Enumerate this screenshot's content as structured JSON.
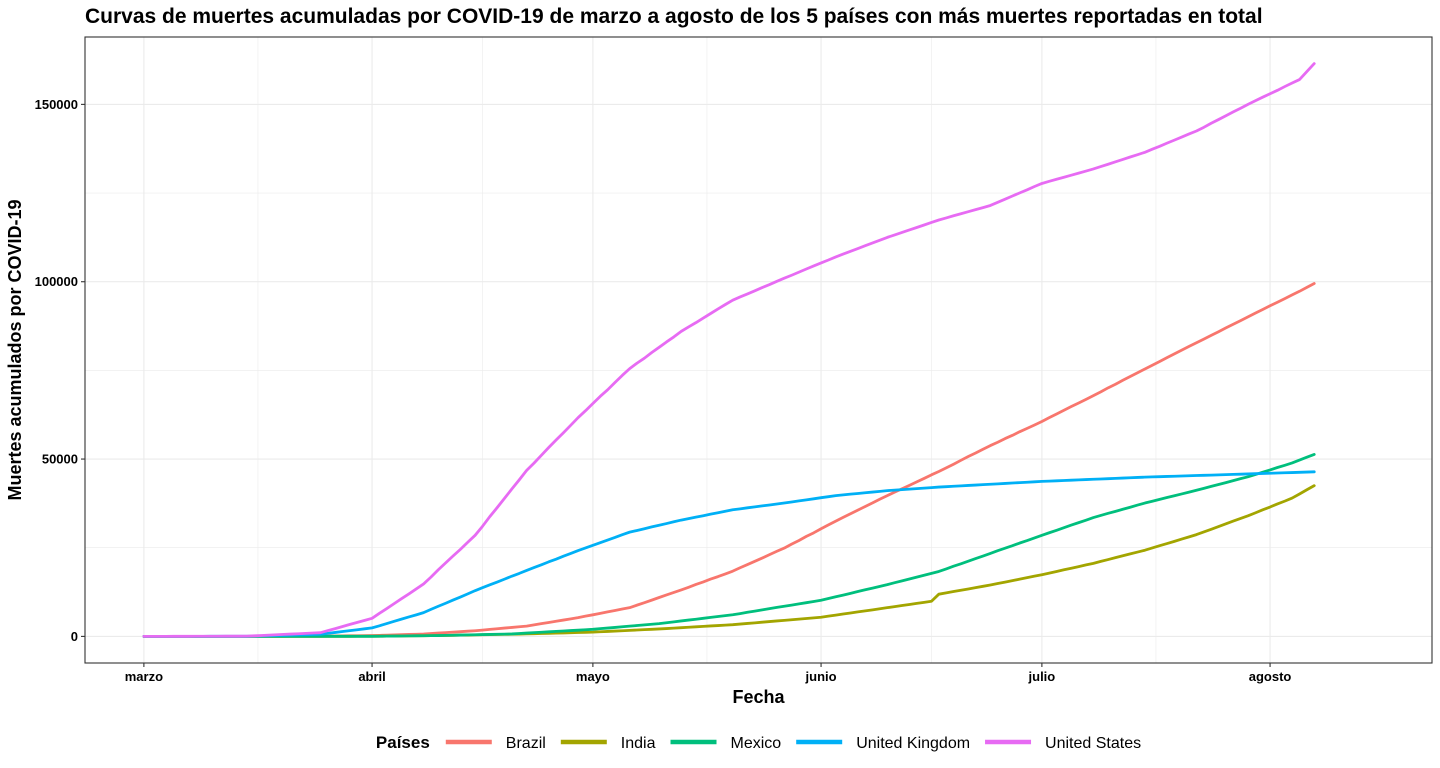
{
  "chart_data": {
    "type": "line",
    "title": "Curvas de muertes acumuladas por COVID-19 de marzo a agosto de los 5 países con más muertes reportadas en total",
    "xlabel": "Fecha",
    "ylabel": "Muertes acumulados por COVID-19",
    "x_type": "date",
    "xlim": [
      "2020-02-22",
      "2020-08-23"
    ],
    "ylim": [
      -7500,
      169000
    ],
    "x_ticks": [
      {
        "label": "marzo",
        "date": "2020-03-01"
      },
      {
        "label": "abril",
        "date": "2020-04-01"
      },
      {
        "label": "mayo",
        "date": "2020-05-01"
      },
      {
        "label": "junio",
        "date": "2020-06-01"
      },
      {
        "label": "julio",
        "date": "2020-07-01"
      },
      {
        "label": "agosto",
        "date": "2020-08-01"
      }
    ],
    "y_ticks": [
      {
        "label": "0",
        "value": 0
      },
      {
        "label": "50000",
        "value": 50000
      },
      {
        "label": "100000",
        "value": 100000
      },
      {
        "label": "150000",
        "value": 150000
      }
    ],
    "grid": true,
    "legend": {
      "title": "Países",
      "position": "bottom"
    },
    "series": [
      {
        "name": "Brazil",
        "color": "#F8766D",
        "points": [
          [
            "2020-03-01",
            0
          ],
          [
            "2020-03-15",
            0
          ],
          [
            "2020-03-25",
            60
          ],
          [
            "2020-04-01",
            240
          ],
          [
            "2020-04-08",
            670
          ],
          [
            "2020-04-15",
            1600
          ],
          [
            "2020-04-22",
            2900
          ],
          [
            "2020-04-29",
            5300
          ],
          [
            "2020-05-06",
            8100
          ],
          [
            "2020-05-13",
            13100
          ],
          [
            "2020-05-20",
            18400
          ],
          [
            "2020-05-27",
            24900
          ],
          [
            "2020-06-03",
            32500
          ],
          [
            "2020-06-10",
            39700
          ],
          [
            "2020-06-17",
            46500
          ],
          [
            "2020-06-24",
            53800
          ],
          [
            "2020-07-01",
            60600
          ],
          [
            "2020-07-08",
            67900
          ],
          [
            "2020-07-15",
            75400
          ],
          [
            "2020-07-22",
            82800
          ],
          [
            "2020-07-29",
            90100
          ],
          [
            "2020-08-05",
            97300
          ],
          [
            "2020-08-07",
            99500
          ]
        ]
      },
      {
        "name": "India",
        "color": "#A3A500",
        "points": [
          [
            "2020-03-01",
            0
          ],
          [
            "2020-03-20",
            5
          ],
          [
            "2020-04-01",
            40
          ],
          [
            "2020-04-10",
            240
          ],
          [
            "2020-04-20",
            600
          ],
          [
            "2020-05-01",
            1200
          ],
          [
            "2020-05-10",
            2100
          ],
          [
            "2020-05-20",
            3300
          ],
          [
            "2020-06-01",
            5400
          ],
          [
            "2020-06-10",
            8100
          ],
          [
            "2020-06-16",
            9900
          ],
          [
            "2020-06-17",
            11900
          ],
          [
            "2020-06-24",
            14500
          ],
          [
            "2020-07-01",
            17400
          ],
          [
            "2020-07-08",
            20600
          ],
          [
            "2020-07-15",
            24300
          ],
          [
            "2020-07-22",
            28700
          ],
          [
            "2020-07-29",
            34000
          ],
          [
            "2020-08-04",
            39000
          ],
          [
            "2020-08-07",
            42500
          ]
        ]
      },
      {
        "name": "Mexico",
        "color": "#00BF7D",
        "points": [
          [
            "2020-03-01",
            0
          ],
          [
            "2020-03-20",
            2
          ],
          [
            "2020-04-01",
            30
          ],
          [
            "2020-04-10",
            230
          ],
          [
            "2020-04-20",
            700
          ],
          [
            "2020-05-01",
            2000
          ],
          [
            "2020-05-10",
            3600
          ],
          [
            "2020-05-20",
            6100
          ],
          [
            "2020-06-01",
            10200
          ],
          [
            "2020-06-10",
            14600
          ],
          [
            "2020-06-17",
            18300
          ],
          [
            "2020-06-24",
            23400
          ],
          [
            "2020-07-01",
            28500
          ],
          [
            "2020-07-08",
            33500
          ],
          [
            "2020-07-15",
            37600
          ],
          [
            "2020-07-22",
            41200
          ],
          [
            "2020-07-29",
            45000
          ],
          [
            "2020-08-04",
            48900
          ],
          [
            "2020-08-07",
            51300
          ]
        ]
      },
      {
        "name": "United Kingdom",
        "color": "#00B0F6",
        "points": [
          [
            "2020-03-01",
            0
          ],
          [
            "2020-03-15",
            30
          ],
          [
            "2020-03-25",
            600
          ],
          [
            "2020-04-01",
            2400
          ],
          [
            "2020-04-08",
            6700
          ],
          [
            "2020-04-15",
            12900
          ],
          [
            "2020-04-22",
            18600
          ],
          [
            "2020-04-29",
            24200
          ],
          [
            "2020-05-06",
            29400
          ],
          [
            "2020-05-13",
            32800
          ],
          [
            "2020-05-20",
            35700
          ],
          [
            "2020-05-27",
            37600
          ],
          [
            "2020-06-03",
            39700
          ],
          [
            "2020-06-10",
            41100
          ],
          [
            "2020-06-17",
            42100
          ],
          [
            "2020-06-24",
            42900
          ],
          [
            "2020-07-01",
            43700
          ],
          [
            "2020-07-15",
            44900
          ],
          [
            "2020-08-01",
            46000
          ],
          [
            "2020-08-07",
            46400
          ]
        ]
      },
      {
        "name": "United States",
        "color": "#E76BF3",
        "points": [
          [
            "2020-03-01",
            0
          ],
          [
            "2020-03-15",
            70
          ],
          [
            "2020-03-25",
            1050
          ],
          [
            "2020-04-01",
            5100
          ],
          [
            "2020-04-08",
            14800
          ],
          [
            "2020-04-15",
            28500
          ],
          [
            "2020-04-22",
            46800
          ],
          [
            "2020-04-29",
            61700
          ],
          [
            "2020-05-06",
            75500
          ],
          [
            "2020-05-13",
            86000
          ],
          [
            "2020-05-20",
            94800
          ],
          [
            "2020-05-27",
            101000
          ],
          [
            "2020-06-03",
            107000
          ],
          [
            "2020-06-10",
            112500
          ],
          [
            "2020-06-17",
            117400
          ],
          [
            "2020-06-24",
            121500
          ],
          [
            "2020-07-01",
            127700
          ],
          [
            "2020-07-08",
            131800
          ],
          [
            "2020-07-15",
            136500
          ],
          [
            "2020-07-22",
            142500
          ],
          [
            "2020-07-29",
            150000
          ],
          [
            "2020-08-05",
            157000
          ],
          [
            "2020-08-07",
            161500
          ]
        ]
      }
    ]
  }
}
